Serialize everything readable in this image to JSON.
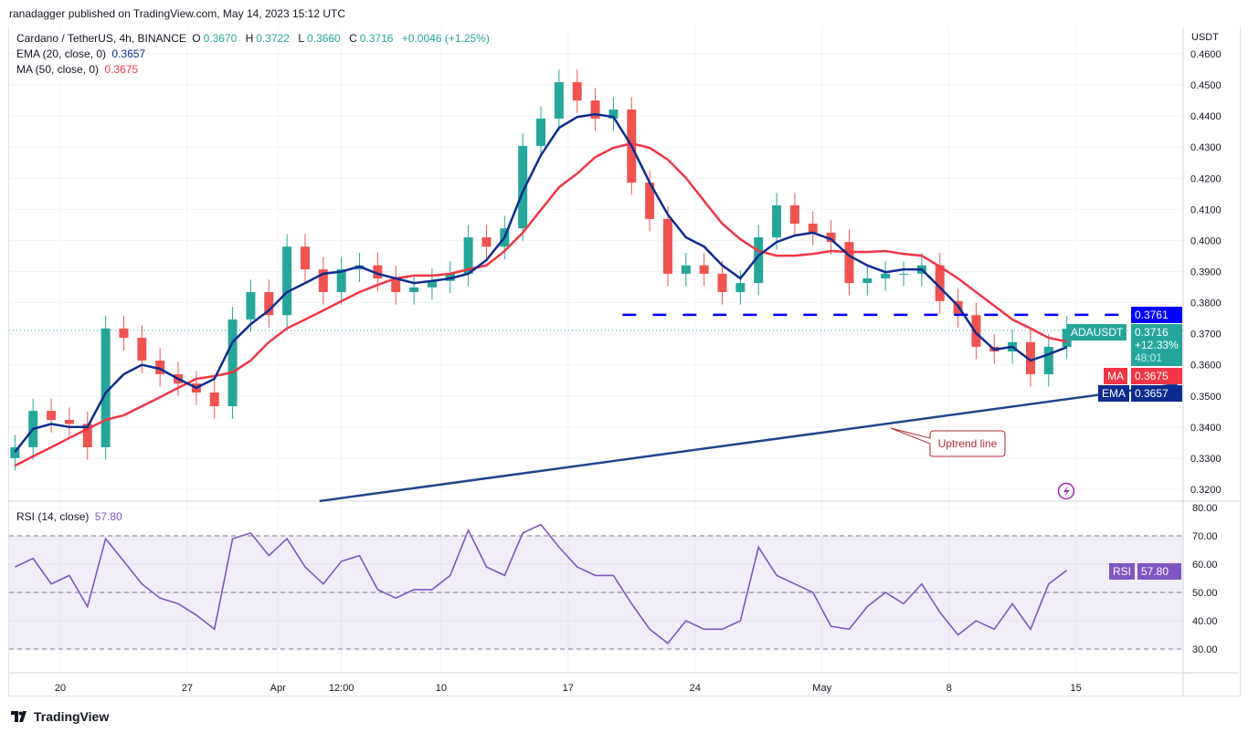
{
  "header": {
    "published": "ranadagger published on TradingView.com, May 14, 2023 15:12 UTC"
  },
  "legend": {
    "symbol": "Cardano / TetherUS, 4h, BINANCE",
    "o_label": "O",
    "o": "0.3670",
    "h_label": "H",
    "h": "0.3722",
    "l_label": "L",
    "l": "0.3660",
    "c_label": "C",
    "c": "0.3716",
    "change": "+0.0046 (+1.25%)",
    "ema_label": "EMA (20, close, 0)",
    "ema_value": "0.3657",
    "ma_label": "MA (50, close, 0)",
    "ma_value": "0.3675",
    "rsi_label": "RSI (14, close)",
    "rsi_value": "57.80"
  },
  "price_axis": {
    "unit": "USDT",
    "ticks": [
      "0.4600",
      "0.4500",
      "0.4400",
      "0.4300",
      "0.4200",
      "0.4100",
      "0.4000",
      "0.3900",
      "0.3800",
      "0.3700",
      "0.3600",
      "0.3500",
      "0.3400",
      "0.3300",
      "0.3200"
    ]
  },
  "rsi_axis": {
    "ticks": [
      "80.00",
      "70.00",
      "60.00",
      "50.00",
      "40.00",
      "30.00"
    ]
  },
  "time_axis": {
    "labels": [
      {
        "text": "20",
        "date": "2023-03-20"
      },
      {
        "text": "27",
        "date": "2023-03-27"
      },
      {
        "text": "Apr",
        "date": "2023-04-01"
      },
      {
        "text": "12:00",
        "date": "2023-04-04T12:00"
      },
      {
        "text": "10",
        "date": "2023-04-10"
      },
      {
        "text": "17",
        "date": "2023-04-17"
      },
      {
        "text": "24",
        "date": "2023-04-24"
      },
      {
        "text": "May",
        "date": "2023-05-01"
      },
      {
        "text": "8",
        "date": "2023-05-08"
      },
      {
        "text": "15",
        "date": "2023-05-15"
      }
    ]
  },
  "tags": {
    "resistance": "0.3761",
    "symbol": "ADAUSDT",
    "last": "0.3716",
    "pct": "+12.33%",
    "countdown": "48:01",
    "ma_tag": "MA",
    "ma": "0.3675",
    "ema_tag": "EMA",
    "ema": "0.3657",
    "rsi_tag": "RSI",
    "rsi": "57.80"
  },
  "annotation": {
    "text": "Uptrend line"
  },
  "footer": {
    "brand": "TradingView"
  },
  "colors": {
    "up": "#26a69a",
    "down": "#ef5350",
    "ema": "#0d2c8f",
    "ma": "#f23645",
    "rsi": "#7e57c2",
    "resistance": "#0000ff",
    "trendline": "#1f4788"
  },
  "chart_data": {
    "type": "candlestick",
    "interval": "4h",
    "start_date": "2023-03-17",
    "ylim": [
      0.315,
      0.4615
    ],
    "rsi_ylim": [
      20,
      82
    ],
    "close": [
      0.3335,
      0.3452,
      0.3423,
      0.341,
      0.3335,
      0.3717,
      0.3687,
      0.3614,
      0.357,
      0.354,
      0.3511,
      0.3467,
      0.3746,
      0.3834,
      0.376,
      0.398,
      0.3907,
      0.3834,
      0.3907,
      0.392,
      0.3878,
      0.3834,
      0.3849,
      0.387,
      0.3893,
      0.401,
      0.398,
      0.4039,
      0.4304,
      0.4392,
      0.4509,
      0.445,
      0.4392,
      0.4421,
      0.4186,
      0.4069,
      0.3893,
      0.392,
      0.3893,
      0.3834,
      0.3863,
      0.401,
      0.4113,
      0.4054,
      0.4025,
      0.3995,
      0.3863,
      0.3878,
      0.3893,
      0.3893,
      0.392,
      0.3805,
      0.376,
      0.3658,
      0.3643,
      0.3673,
      0.357,
      0.3658,
      0.3716
    ],
    "ema20": [
      0.332,
      0.3394,
      0.341,
      0.34,
      0.34,
      0.351,
      0.357,
      0.36,
      0.3587,
      0.3555,
      0.3526,
      0.3555,
      0.3673,
      0.3731,
      0.3775,
      0.3834,
      0.3863,
      0.3893,
      0.39,
      0.3916,
      0.3893,
      0.3878,
      0.3863,
      0.387,
      0.3878,
      0.3893,
      0.3937,
      0.401,
      0.4157,
      0.4274,
      0.4362,
      0.4397,
      0.4406,
      0.4397,
      0.4304,
      0.4186,
      0.4083,
      0.401,
      0.398,
      0.392,
      0.3878,
      0.3951,
      0.3995,
      0.4016,
      0.4025,
      0.4004,
      0.3951,
      0.392,
      0.3898,
      0.3907,
      0.3907,
      0.3849,
      0.379,
      0.3702,
      0.3649,
      0.3658,
      0.3614,
      0.3634,
      0.3657
    ],
    "ma50": [
      0.3276,
      0.3306,
      0.3335,
      0.3365,
      0.3394,
      0.3423,
      0.3438,
      0.3467,
      0.3496,
      0.3526,
      0.3555,
      0.3564,
      0.3576,
      0.3614,
      0.3673,
      0.3717,
      0.3746,
      0.3775,
      0.3805,
      0.3834,
      0.3857,
      0.3878,
      0.3887,
      0.3887,
      0.3893,
      0.3907,
      0.392,
      0.3966,
      0.4025,
      0.4098,
      0.4171,
      0.4215,
      0.4268,
      0.4298,
      0.4312,
      0.4298,
      0.426,
      0.4201,
      0.4127,
      0.4054,
      0.4004,
      0.3966,
      0.3951,
      0.3951,
      0.3957,
      0.3966,
      0.3963,
      0.3963,
      0.3966,
      0.3957,
      0.3951,
      0.3916,
      0.3878,
      0.3834,
      0.379,
      0.3746,
      0.3717,
      0.3687,
      0.3675
    ],
    "rsi": [
      59,
      62,
      53,
      56,
      45,
      69,
      61,
      53,
      48,
      46,
      42,
      37,
      69,
      71,
      63,
      69,
      59,
      53,
      61,
      63,
      51,
      48,
      51,
      51,
      56,
      72,
      59,
      56,
      71,
      74,
      66,
      59,
      56,
      56,
      46,
      37,
      32,
      40,
      37,
      37,
      40,
      66,
      56,
      53,
      50,
      38,
      37,
      45,
      50,
      46,
      53,
      43,
      35,
      40,
      37,
      46,
      37,
      53,
      57.8
    ],
    "rsi_levels": [
      70,
      50,
      30
    ],
    "resistance_level": 0.3761,
    "resistance_from": "2023-04-20",
    "uptrend_line": {
      "from": {
        "date": "2023-04-03T07:00",
        "price": 0.3162
      },
      "to": {
        "date": "2023-05-20T14:00",
        "price": 0.3538
      }
    }
  }
}
